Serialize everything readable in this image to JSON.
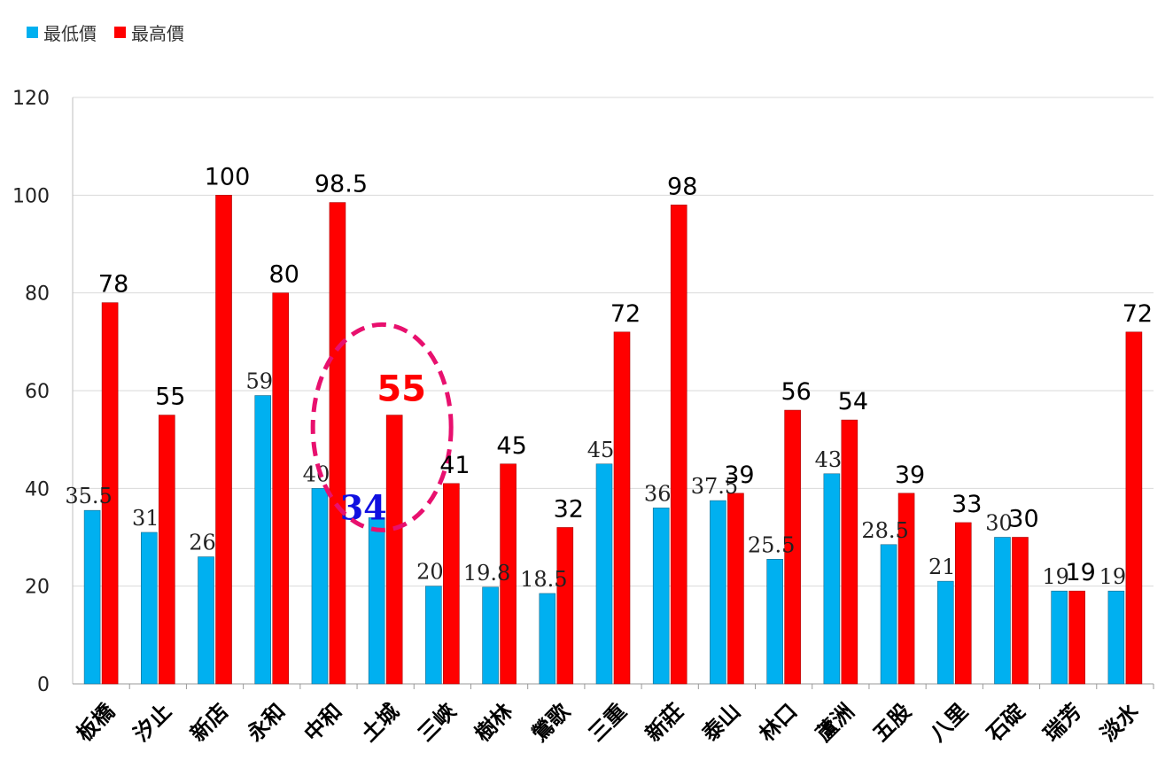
{
  "chart_data": {
    "type": "bar",
    "categories": [
      "板橋",
      "汐止",
      "新店",
      "永和",
      "中和",
      "土城",
      "三峽",
      "樹林",
      "鶯歌",
      "三重",
      "新莊",
      "泰山",
      "林口",
      "蘆洲",
      "五股",
      "八里",
      "石碇",
      "瑞芳",
      "淡水"
    ],
    "series": [
      {
        "name": "最低價",
        "color": "#00b0f0",
        "values": [
          35.5,
          31,
          26,
          59,
          40,
          34,
          20,
          19.8,
          18.5,
          45,
          36,
          37.5,
          25.5,
          43,
          28.5,
          21,
          30,
          19,
          19
        ]
      },
      {
        "name": "最高價",
        "color": "#ff0000",
        "values": [
          78,
          55,
          100,
          80,
          98.5,
          55,
          41,
          45,
          32,
          72,
          98,
          39,
          56,
          54,
          39,
          33,
          30,
          19,
          72
        ]
      }
    ],
    "ylim": [
      0,
      120
    ],
    "yticks": [
      "0",
      "20",
      "40",
      "60",
      "80",
      "100",
      "120"
    ],
    "grid": true,
    "legend_position": "top-left",
    "highlight": {
      "category": "土城",
      "color": "#e8106e",
      "min_label_color": "#1010e0",
      "max_label_color": "#ff0000"
    }
  }
}
